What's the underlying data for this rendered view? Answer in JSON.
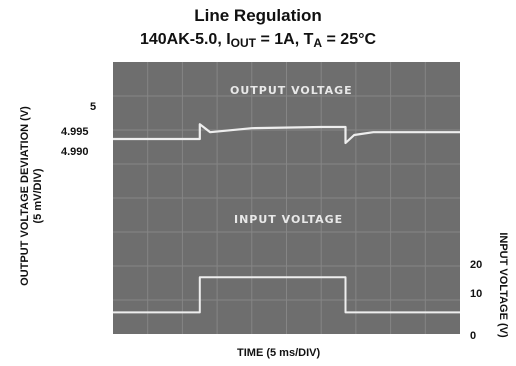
{
  "chart_data": {
    "type": "line",
    "title": "Line Regulation",
    "subtitle": {
      "device": "140AK-5.0",
      "iout_symbol": "I",
      "iout_sub": "OUT",
      "iout_value": "= 1A",
      "ta_symbol": "T",
      "ta_sub": "A",
      "ta_value": "= 25°C"
    },
    "xlabel": "TIME (5 ms/DIV)",
    "ylabel_left": "OUTPUT VOLTAGE DEVIATION (V)",
    "ylabel_left_sub": "(5 mV/DIV)",
    "ylabel_right": "INPUT VOLTAGE (V)",
    "yticks_left": [
      "5",
      "4.995",
      "4.990"
    ],
    "yticks_right": [
      "20",
      "10",
      "0"
    ],
    "trace_labels": [
      "OUTPUT VOLTAGE",
      "INPUT VOLTAGE"
    ],
    "grid": true,
    "x_divisions": 10,
    "y_divisions": 8,
    "series": [
      {
        "name": "OUTPUT VOLTAGE",
        "x": [
          0,
          2.5,
          2.5,
          2.8,
          4,
          6,
          6.7,
          6.7,
          6.95,
          7.5,
          10
        ],
        "y": [
          4.9915,
          4.9915,
          4.9952,
          4.9932,
          4.9942,
          4.9945,
          4.9945,
          4.9905,
          4.9925,
          4.9932,
          4.9932
        ]
      },
      {
        "name": "INPUT VOLTAGE",
        "x": [
          0,
          2.5,
          2.5,
          6.7,
          6.7,
          10
        ],
        "y": [
          8,
          8,
          17.5,
          17.5,
          8,
          8
        ]
      }
    ]
  }
}
